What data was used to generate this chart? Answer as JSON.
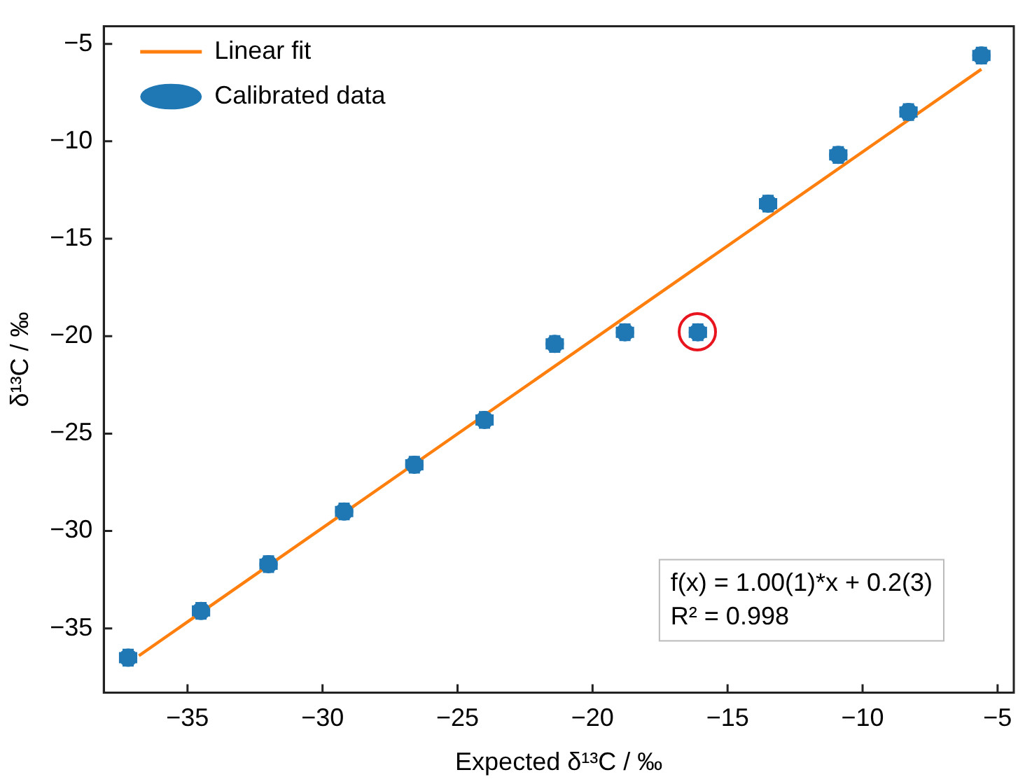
{
  "chart_data": {
    "type": "scatter",
    "xlabel": "Expected δ¹³C / ‰",
    "ylabel": "δ¹³C / ‰",
    "xlim": [
      -38.1,
      -4.4
    ],
    "ylim": [
      -38.3,
      -4.1
    ],
    "xticks": [
      {
        "value": -35,
        "label": "−35"
      },
      {
        "value": -30,
        "label": "−30"
      },
      {
        "value": -25,
        "label": "−25"
      },
      {
        "value": -20,
        "label": "−20"
      },
      {
        "value": -15,
        "label": "−15"
      },
      {
        "value": -10,
        "label": "−10"
      },
      {
        "value": -5,
        "label": "−5"
      }
    ],
    "yticks": [
      {
        "value": -35,
        "label": "−35"
      },
      {
        "value": -30,
        "label": "−30"
      },
      {
        "value": -25,
        "label": "−25"
      },
      {
        "value": -20,
        "label": "−20"
      },
      {
        "value": -15,
        "label": "−15"
      },
      {
        "value": -10,
        "label": "−10"
      },
      {
        "value": -5,
        "label": "−5"
      }
    ],
    "legend": "top left",
    "annotations": [
      "f(x) = 1.00(1)*x + 0.2(3)",
      "R² = 0.998"
    ],
    "series": [
      {
        "name": "Linear fit",
        "type": "line",
        "color": "#ff7f0e",
        "x": [
          -36.8,
          -5.6
        ],
        "values": [
          -36.4,
          -6.3
        ]
      },
      {
        "name": "Calibrated data",
        "marker": "circle",
        "color": "#1f77b4",
        "x": [
          -37.2,
          -34.5,
          -32.0,
          -29.2,
          -26.6,
          -24.0,
          -21.4,
          -18.8,
          -16.1,
          -13.5,
          -10.9,
          -8.3,
          -5.6
        ],
        "values": [
          -36.5,
          -34.1,
          -31.7,
          -29.0,
          -26.6,
          -24.3,
          -20.4,
          -19.8,
          -19.8,
          -13.2,
          -10.7,
          -8.5,
          -5.6
        ],
        "errors": [
          0.4,
          0.4,
          0.4,
          0.4,
          0.4,
          0.4,
          0.4,
          0.4,
          0.4,
          0.4,
          0.4,
          0.4,
          0.4
        ],
        "xerrors": [
          0.3,
          0.3,
          0.3,
          0.3,
          0.3,
          0.3,
          0.3,
          0.3,
          0.3,
          0.3,
          0.3,
          0.3,
          0.3
        ]
      }
    ]
  }
}
